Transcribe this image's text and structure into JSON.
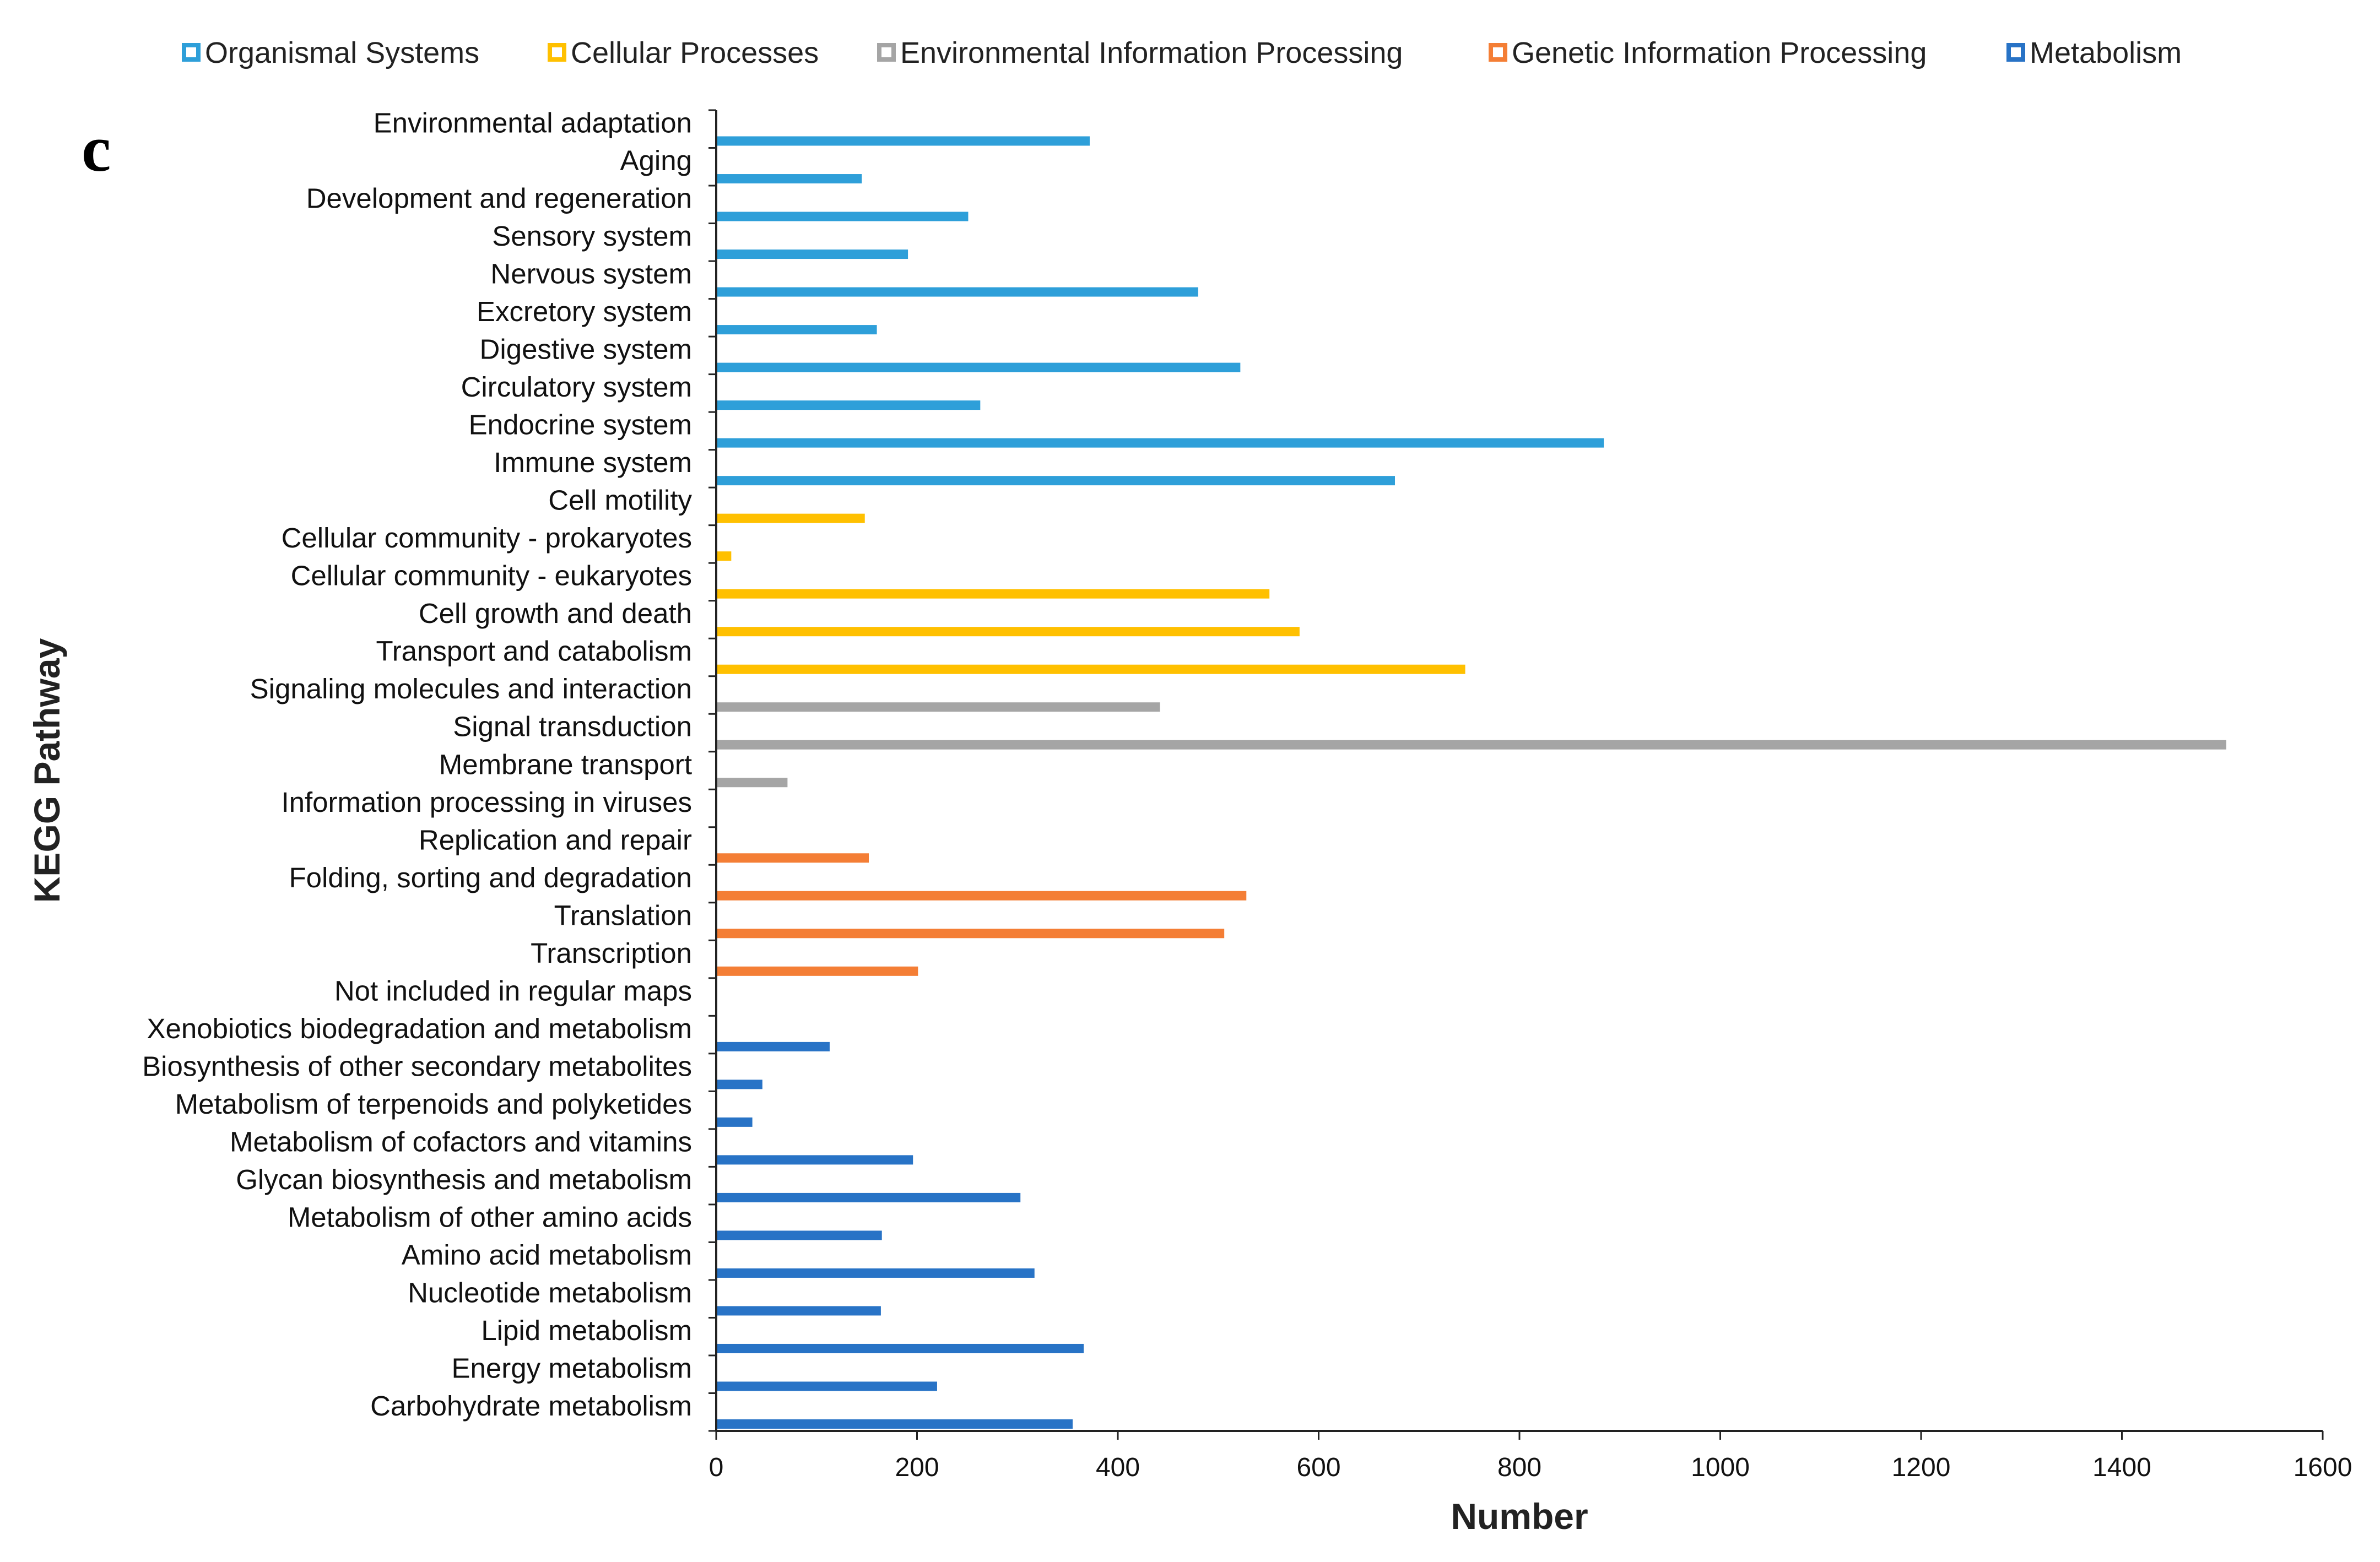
{
  "chart_data": {
    "type": "bar",
    "orientation": "horizontal",
    "panel_label": "c",
    "xlabel": "Number",
    "ylabel": "KEGG Pathway",
    "xlim": [
      0,
      1600
    ],
    "xticks": [
      0,
      200,
      400,
      600,
      800,
      1000,
      1200,
      1400,
      1600
    ],
    "grid": false,
    "legend_position": "top",
    "legend": [
      {
        "name": "Organismal Systems",
        "color": "#2E9FD9"
      },
      {
        "name": "Cellular Processes",
        "color": "#FFC000"
      },
      {
        "name": "Environmental Information Processing",
        "color": "#A5A5A5"
      },
      {
        "name": "Genetic Information Processing",
        "color": "#F47E35"
      },
      {
        "name": "Metabolism",
        "color": "#2873C6"
      }
    ],
    "categories": [
      {
        "label": "Environmental adaptation",
        "value": 372,
        "group": "Organismal Systems"
      },
      {
        "label": "Aging",
        "value": 145,
        "group": "Organismal Systems"
      },
      {
        "label": "Development and regeneration",
        "value": 251,
        "group": "Organismal Systems"
      },
      {
        "label": "Sensory system",
        "value": 191,
        "group": "Organismal Systems"
      },
      {
        "label": "Nervous system",
        "value": 480,
        "group": "Organismal Systems"
      },
      {
        "label": "Excretory system",
        "value": 160,
        "group": "Organismal Systems"
      },
      {
        "label": "Digestive system",
        "value": 522,
        "group": "Organismal Systems"
      },
      {
        "label": "Circulatory system",
        "value": 263,
        "group": "Organismal Systems"
      },
      {
        "label": "Endocrine system",
        "value": 884,
        "group": "Organismal Systems"
      },
      {
        "label": "Immune system",
        "value": 676,
        "group": "Organismal Systems"
      },
      {
        "label": "Cell motility",
        "value": 148,
        "group": "Cellular Processes"
      },
      {
        "label": "Cellular community - prokaryotes",
        "value": 15,
        "group": "Cellular Processes"
      },
      {
        "label": "Cellular community - eukaryotes",
        "value": 551,
        "group": "Cellular Processes"
      },
      {
        "label": "Cell growth and death",
        "value": 581,
        "group": "Cellular Processes"
      },
      {
        "label": "Transport and catabolism",
        "value": 746,
        "group": "Cellular Processes"
      },
      {
        "label": "Signaling molecules and interaction",
        "value": 442,
        "group": "Environmental Information Processing"
      },
      {
        "label": "Signal transduction",
        "value": 1504,
        "group": "Environmental Information Processing"
      },
      {
        "label": "Membrane transport",
        "value": 71,
        "group": "Environmental Information Processing"
      },
      {
        "label": "Information processing in viruses",
        "value": 0,
        "group": "Genetic Information Processing"
      },
      {
        "label": "Replication and repair",
        "value": 152,
        "group": "Genetic Information Processing"
      },
      {
        "label": "Folding, sorting and degradation",
        "value": 528,
        "group": "Genetic Information Processing"
      },
      {
        "label": "Translation",
        "value": 506,
        "group": "Genetic Information Processing"
      },
      {
        "label": "Transcription",
        "value": 201,
        "group": "Genetic Information Processing"
      },
      {
        "label": "Not included in regular maps",
        "value": 0,
        "group": "Metabolism"
      },
      {
        "label": "Xenobiotics biodegradation and metabolism",
        "value": 113,
        "group": "Metabolism"
      },
      {
        "label": "Biosynthesis of other secondary metabolites",
        "value": 46,
        "group": "Metabolism"
      },
      {
        "label": "Metabolism of terpenoids and polyketides",
        "value": 36,
        "group": "Metabolism"
      },
      {
        "label": "Metabolism of cofactors and vitamins",
        "value": 196,
        "group": "Metabolism"
      },
      {
        "label": "Glycan biosynthesis and metabolism",
        "value": 303,
        "group": "Metabolism"
      },
      {
        "label": "Metabolism of other amino acids",
        "value": 165,
        "group": "Metabolism"
      },
      {
        "label": "Amino acid metabolism",
        "value": 317,
        "group": "Metabolism"
      },
      {
        "label": "Nucleotide metabolism",
        "value": 164,
        "group": "Metabolism"
      },
      {
        "label": "Lipid metabolism",
        "value": 366,
        "group": "Metabolism"
      },
      {
        "label": "Energy metabolism",
        "value": 220,
        "group": "Metabolism"
      },
      {
        "label": "Carbohydrate metabolism",
        "value": 355,
        "group": "Metabolism"
      }
    ]
  }
}
